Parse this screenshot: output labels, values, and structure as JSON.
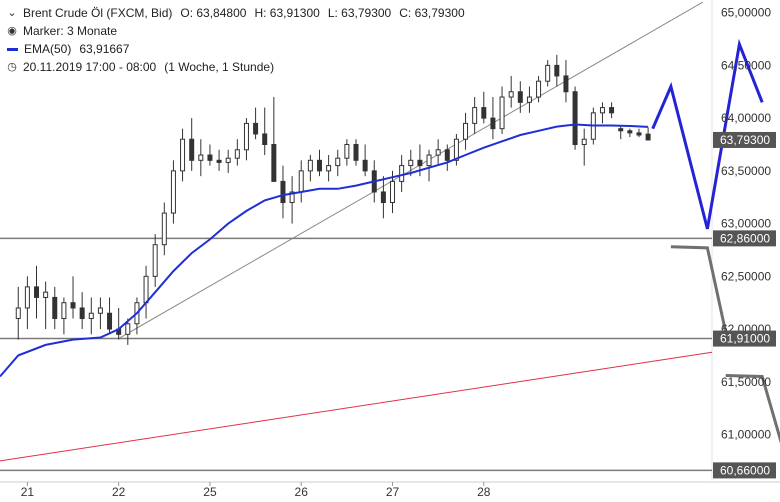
{
  "legend": {
    "title": "Brent Crude Öl (FXCM, Bid)",
    "open": "O: 63,84800",
    "high": "H: 63,91300",
    "low": "L: 63,79300",
    "close": "C: 63,79300",
    "marker": "Marker: 3 Monate",
    "ema_label": "EMA(50)",
    "ema_value": "63,91667",
    "range": "20.11.2019 17:00 - 08:00",
    "interval": "(1 Woche, 1 Stunde)"
  },
  "chart_data": {
    "type": "candlestick",
    "y_axis": {
      "ticks": [
        61.0,
        61.5,
        62.0,
        62.5,
        63.0,
        63.5,
        64.0,
        64.5,
        65.0
      ],
      "tick_labels": [
        "61,00000",
        "61,50000",
        "62,00000",
        "62,50000",
        "63,00000",
        "63,50000",
        "64,00000",
        "64,50000",
        "65,00000"
      ],
      "range": [
        60.55,
        65.12
      ]
    },
    "x_axis": {
      "ticks": [
        1,
        11,
        21,
        31,
        41,
        51
      ],
      "tick_labels": [
        "21",
        "22",
        "25",
        "26",
        "27",
        "28"
      ],
      "range": [
        -2,
        76
      ]
    },
    "candles": [
      [
        0,
        62.1,
        62.4,
        61.9,
        62.2
      ],
      [
        1,
        62.2,
        62.5,
        62.0,
        62.4
      ],
      [
        2,
        62.4,
        62.6,
        62.1,
        62.3
      ],
      [
        3,
        62.3,
        62.45,
        62.0,
        62.35
      ],
      [
        4,
        62.3,
        62.4,
        62.0,
        62.1
      ],
      [
        5,
        62.1,
        62.3,
        61.95,
        62.25
      ],
      [
        6,
        62.25,
        62.5,
        62.1,
        62.2
      ],
      [
        7,
        62.2,
        62.35,
        62.0,
        62.1
      ],
      [
        8,
        62.1,
        62.3,
        61.95,
        62.15
      ],
      [
        9,
        62.15,
        62.3,
        62.0,
        62.2
      ],
      [
        10,
        62.15,
        62.3,
        61.95,
        62.0
      ],
      [
        11,
        62.0,
        62.2,
        61.9,
        61.95
      ],
      [
        12,
        61.95,
        62.1,
        61.85,
        62.05
      ],
      [
        13,
        62.05,
        62.3,
        61.95,
        62.25
      ],
      [
        14,
        62.25,
        62.6,
        62.1,
        62.5
      ],
      [
        15,
        62.5,
        62.9,
        62.4,
        62.8
      ],
      [
        16,
        62.8,
        63.2,
        62.7,
        63.1
      ],
      [
        17,
        63.1,
        63.6,
        63.0,
        63.5
      ],
      [
        18,
        63.5,
        63.9,
        63.4,
        63.8
      ],
      [
        19,
        63.8,
        64.0,
        63.5,
        63.6
      ],
      [
        20,
        63.6,
        63.8,
        63.45,
        63.65
      ],
      [
        21,
        63.65,
        63.75,
        63.55,
        63.6
      ],
      [
        22,
        63.6,
        63.7,
        63.5,
        63.58
      ],
      [
        23,
        63.58,
        63.7,
        63.48,
        63.62
      ],
      [
        24,
        63.62,
        63.8,
        63.55,
        63.7
      ],
      [
        25,
        63.7,
        64.0,
        63.6,
        63.95
      ],
      [
        26,
        63.95,
        64.1,
        63.8,
        63.85
      ],
      [
        27,
        63.85,
        64.1,
        63.65,
        63.75
      ],
      [
        28,
        63.75,
        64.2,
        63.4,
        63.4
      ],
      [
        29,
        63.4,
        63.55,
        63.05,
        63.2
      ],
      [
        30,
        63.2,
        63.45,
        63.0,
        63.3
      ],
      [
        31,
        63.3,
        63.6,
        63.2,
        63.5
      ],
      [
        32,
        63.5,
        63.65,
        63.4,
        63.6
      ],
      [
        33,
        63.6,
        63.7,
        63.45,
        63.5
      ],
      [
        34,
        63.5,
        63.65,
        63.4,
        63.55
      ],
      [
        35,
        63.55,
        63.7,
        63.45,
        63.62
      ],
      [
        36,
        63.62,
        63.8,
        63.55,
        63.75
      ],
      [
        37,
        63.75,
        63.8,
        63.55,
        63.6
      ],
      [
        38,
        63.6,
        63.75,
        63.45,
        63.5
      ],
      [
        39,
        63.5,
        63.6,
        63.2,
        63.3
      ],
      [
        40,
        63.3,
        63.45,
        63.05,
        63.2
      ],
      [
        41,
        63.2,
        63.5,
        63.1,
        63.4
      ],
      [
        42,
        63.4,
        63.65,
        63.3,
        63.55
      ],
      [
        43,
        63.55,
        63.7,
        63.45,
        63.6
      ],
      [
        44,
        63.6,
        63.75,
        63.45,
        63.55
      ],
      [
        45,
        63.55,
        63.7,
        63.4,
        63.65
      ],
      [
        46,
        63.65,
        63.8,
        63.55,
        63.7
      ],
      [
        47,
        63.7,
        63.75,
        63.5,
        63.6
      ],
      [
        48,
        63.6,
        63.85,
        63.55,
        63.8
      ],
      [
        49,
        63.8,
        64.05,
        63.7,
        63.95
      ],
      [
        50,
        63.95,
        64.2,
        63.85,
        64.1
      ],
      [
        51,
        64.1,
        64.25,
        63.95,
        64.0
      ],
      [
        52,
        64.0,
        64.2,
        63.8,
        63.9
      ],
      [
        53,
        63.9,
        64.3,
        63.85,
        64.2
      ],
      [
        54,
        64.2,
        64.4,
        64.1,
        64.25
      ],
      [
        55,
        64.25,
        64.35,
        64.05,
        64.15
      ],
      [
        56,
        64.15,
        64.3,
        64.05,
        64.2
      ],
      [
        57,
        64.2,
        64.4,
        64.15,
        64.35
      ],
      [
        58,
        64.35,
        64.55,
        64.3,
        64.5
      ],
      [
        59,
        64.5,
        64.6,
        64.3,
        64.4
      ],
      [
        60,
        64.4,
        64.55,
        64.15,
        64.25
      ],
      [
        61,
        64.25,
        64.3,
        63.7,
        63.75
      ],
      [
        62,
        63.75,
        63.9,
        63.55,
        63.8
      ],
      [
        63,
        63.8,
        64.1,
        63.75,
        64.05
      ],
      [
        64,
        64.05,
        64.15,
        63.95,
        64.1
      ],
      [
        65,
        64.1,
        64.15,
        64.0,
        64.05
      ],
      [
        66,
        63.9,
        63.93,
        63.8,
        63.88
      ],
      [
        67,
        63.88,
        63.9,
        63.82,
        63.86
      ],
      [
        68,
        63.86,
        63.9,
        63.82,
        63.84
      ],
      [
        69,
        63.848,
        63.913,
        63.793,
        63.793
      ]
    ],
    "ema": [
      [
        -2,
        61.55
      ],
      [
        0,
        61.75
      ],
      [
        3,
        61.85
      ],
      [
        6,
        61.9
      ],
      [
        9,
        61.92
      ],
      [
        11,
        62.0
      ],
      [
        13,
        62.15
      ],
      [
        15,
        62.35
      ],
      [
        17,
        62.55
      ],
      [
        19,
        62.72
      ],
      [
        21,
        62.85
      ],
      [
        23,
        63.0
      ],
      [
        25,
        63.12
      ],
      [
        27,
        63.22
      ],
      [
        29,
        63.27
      ],
      [
        31,
        63.3
      ],
      [
        33,
        63.33
      ],
      [
        35,
        63.33
      ],
      [
        37,
        63.36
      ],
      [
        39,
        63.4
      ],
      [
        41,
        63.44
      ],
      [
        43,
        63.48
      ],
      [
        45,
        63.53
      ],
      [
        47,
        63.58
      ],
      [
        49,
        63.65
      ],
      [
        51,
        63.72
      ],
      [
        53,
        63.78
      ],
      [
        55,
        63.84
      ],
      [
        57,
        63.88
      ],
      [
        59,
        63.92
      ],
      [
        61,
        63.94
      ],
      [
        63,
        63.93
      ],
      [
        65,
        63.93
      ],
      [
        67,
        63.925
      ],
      [
        69,
        63.917
      ]
    ],
    "uptrend_line": [
      [
        11,
        61.91
      ],
      [
        75,
        65.1
      ]
    ],
    "red_trend_line": [
      [
        -2,
        60.75
      ],
      [
        76,
        61.78
      ]
    ],
    "horizontal_levels": [
      {
        "value": 62.86,
        "label": "62,86000"
      },
      {
        "value": 61.91,
        "label": "61,91000"
      },
      {
        "value": 60.66,
        "label": "60,66000"
      }
    ],
    "current_price": {
      "value": 63.793,
      "label": "63,79300"
    },
    "projection_blue": [
      [
        69.5,
        63.9
      ],
      [
        71.5,
        64.3
      ],
      [
        75.5,
        62.95
      ],
      [
        79,
        64.7
      ],
      [
        81.5,
        64.15
      ]
    ],
    "projection_grey": [
      [
        [
          71.5,
          62.78
        ],
        [
          75.5,
          62.77
        ],
        [
          77.5,
          61.97
        ]
      ],
      [
        [
          77.5,
          61.56
        ],
        [
          81.5,
          61.55
        ],
        [
          84.5,
          60.65
        ]
      ]
    ],
    "colors": {
      "ema": "#1f2fd6",
      "projection_blue": "#2424d6",
      "projection_grey": "#707070",
      "red_line": "#e0304a",
      "uptrend": "#8a8a8a",
      "level": "#7a7a7a",
      "badge": "#555555",
      "candle": "#333333"
    }
  }
}
